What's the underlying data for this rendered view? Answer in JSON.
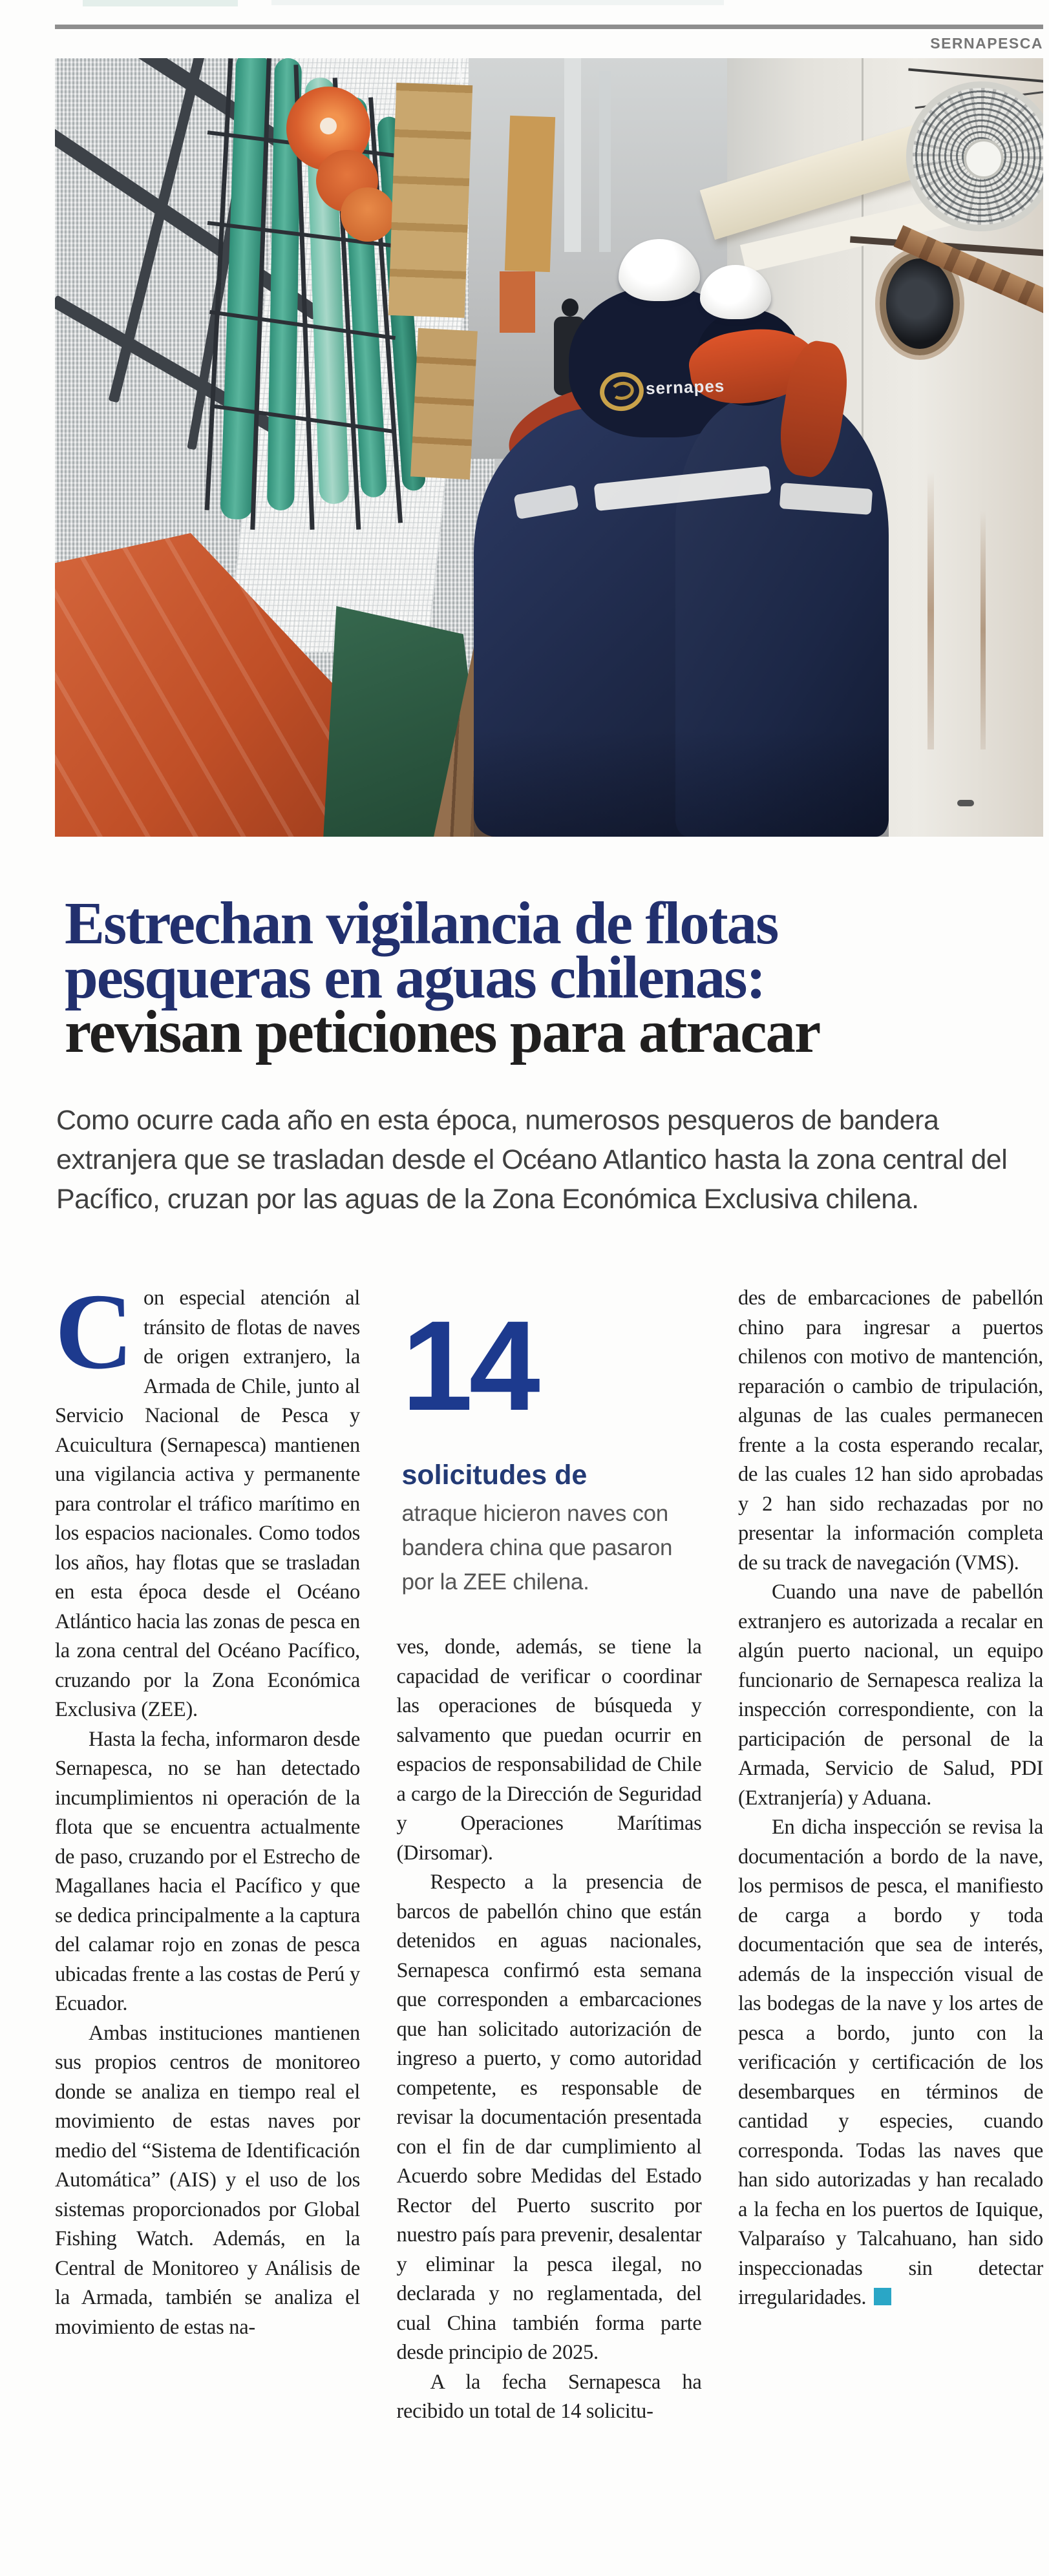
{
  "colors": {
    "headline_blue": "#22306e",
    "headline_dark": "#201f1f",
    "accent_blue": "#1d3a8e",
    "kicker_blue": "#233a75",
    "credit_gray": "#767676",
    "end_mark_teal": "#2aa6c6",
    "rule_gray": "#8e8e8e",
    "buoy_orange": "#d95f2d",
    "tarp_orange": "#c04f27",
    "tube_teal": "#2f8f78",
    "jacket_navy": "#1f2a4a"
  },
  "page": {
    "credit": "SERNAPESCA"
  },
  "headline": {
    "line1": "Estrechan vigilancia de flotas",
    "line2": "pesqueras en aguas chilenas:",
    "line3": "revisan peticiones para atracar"
  },
  "lede": "Como ocurre cada año en esta época, numerosos pesqueros de bandera extranjera que se trasladan desde el Océano Atlantico hasta la zona central del Pacífico, cruzan por las aguas de la Zona Económica Exclusiva chilena.",
  "callout": {
    "number": "14",
    "kicker": "solicitudes de",
    "text": "atraque hicieron naves con bandera china que pasaron por la ZEE chilena."
  },
  "photo": {
    "jacket_text": "sernapes"
  },
  "article": {
    "col1": {
      "dropcap": "C",
      "p1": "on especial atención al tránsito de flotas de naves de origen extranjero, la Armada de Chile, junto al Servicio Nacional de Pesca y Acuicultura (Sernapesca) mantienen una vigilancia activa y permanente para controlar el tráfico marítimo en los espacios nacionales. Como todos los años, hay flotas que se trasladan en esta época desde el Océano Atlántico hacia las zonas de pesca en la zona central del Océano Pacífico, cruzando por la Zona Económica Exclusiva (ZEE).",
      "p2": "Hasta la fecha, informaron desde Sernapesca, no se han detectado incumplimientos ni operación de la flota que se encuentra actualmente de paso, cruzando por el Estrecho de Magallanes hacia el Pacífico y que se dedica principalmente a la captura del calamar rojo en zonas de pesca ubicadas frente a las costas de Perú y Ecuador.",
      "p3": "Ambas instituciones mantienen sus propios centros de monitoreo donde se analiza en tiempo real el movimiento de estas naves por medio del “Sistema de Identificación Automática” (AIS) y el uso de los sistemas proporcionados por Global Fishing Watch. Además, en la Central de Monitoreo y Análisis de la Armada, también se analiza el movimiento de estas na-"
    },
    "col2": {
      "p1": "ves, donde, además, se tiene la capacidad de verificar o coordinar las operaciones de búsqueda y salvamento que puedan ocurrir en espacios de responsabilidad de Chile a cargo de la Dirección de Seguridad y Operaciones Marítimas (Dirsomar).",
      "p2": "Respecto a la presencia de barcos de pabellón chino que están detenidos en aguas nacionales, Sernapesca confirmó esta semana que corresponden a embarcaciones que han solicitado autorización de ingreso a puerto, y como autoridad competente, es responsable de revisar la documentación presentada con el fin de dar cumplimiento al Acuerdo sobre Medidas del Estado Rector del Puerto suscrito por nuestro país para prevenir, desalentar y eliminar la pesca ilegal, no declarada y no reglamentada, del cual China también forma parte desde principio de 2025.",
      "p3": "A la fecha Sernapesca ha recibido un total de 14 solicitu-"
    },
    "col3": {
      "p1": "des de embarcaciones de pabellón chino para ingresar a puertos chilenos con motivo de mantención, reparación o cambio de tripulación, algunas de las cuales permanecen frente a la costa esperando recalar, de las cuales 12 han sido aprobadas y 2 han sido rechazadas por no presentar la información completa de su track de navegación (VMS).",
      "p2": "Cuando una nave de pabellón extranjero es autorizada a recalar en algún puerto nacional, un equipo funcionario de Sernapesca realiza la inspección correspondiente, con la participación de personal de la Armada, Servicio de Salud, PDI (Extranjería) y Aduana.",
      "p3": "En dicha inspección se revisa la documentación a bordo de la nave, los permisos de pesca, el manifiesto de carga a bordo y toda documentación que sea de interés, además de la inspección visual de las bodegas de la nave y los artes de pesca a bordo, junto con la verificación y certificación de los desembarques en términos de cantidad y especies, cuando corresponda. Todas las naves que han sido autorizadas y han recalado a la fecha en los puertos de Iquique, Valparaíso y Talcahuano, han sido inspeccionadas sin detectar irregularidades."
    }
  }
}
